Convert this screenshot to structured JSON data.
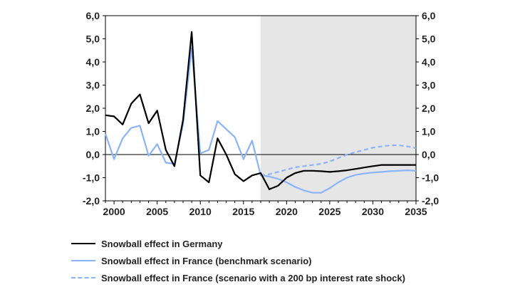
{
  "chart_data": {
    "type": "line",
    "title": "",
    "xlabel": "",
    "ylabel": "",
    "xlim": [
      1999,
      2035
    ],
    "ylim": [
      -2.0,
      6.0
    ],
    "x_ticks": [
      2000,
      2005,
      2010,
      2015,
      2020,
      2025,
      2030,
      2035
    ],
    "y_ticks": [
      "6,0",
      "5,0",
      "4,0",
      "3,0",
      "2,0",
      "1,0",
      "0,0",
      "-1,0",
      "-2,0"
    ],
    "y_tick_values": [
      6,
      5,
      4,
      3,
      2,
      1,
      0,
      -1,
      -2
    ],
    "shaded_region": {
      "from": 2017,
      "to": 2035,
      "color": "#e6e6e6"
    },
    "zero_line": true,
    "series": [
      {
        "name": "Snowball effect in Germany",
        "color": "#000000",
        "style": "solid",
        "x": [
          1999,
          2000,
          2001,
          2002,
          2003,
          2004,
          2005,
          2006,
          2007,
          2008,
          2009,
          2010,
          2011,
          2012,
          2013,
          2014,
          2015,
          2016,
          2017,
          2018,
          2019,
          2020,
          2021,
          2022,
          2023,
          2024,
          2025,
          2026,
          2027,
          2028,
          2029,
          2030,
          2031,
          2032,
          2033,
          2034,
          2035
        ],
        "values": [
          1.7,
          1.65,
          1.3,
          2.2,
          2.6,
          1.35,
          1.9,
          0.2,
          -0.5,
          1.5,
          5.3,
          -0.9,
          -1.2,
          0.7,
          0.0,
          -0.85,
          -1.15,
          -0.9,
          -0.8,
          -1.5,
          -1.35,
          -1.0,
          -0.8,
          -0.7,
          -0.7,
          -0.72,
          -0.75,
          -0.72,
          -0.68,
          -0.62,
          -0.56,
          -0.5,
          -0.45,
          -0.45,
          -0.45,
          -0.45,
          -0.45
        ]
      },
      {
        "name": "Snowball effect in France (benchmark scenario)",
        "color": "#8ab4f8",
        "style": "solid",
        "x": [
          1999,
          2000,
          2001,
          2002,
          2003,
          2004,
          2005,
          2006,
          2007,
          2008,
          2009,
          2010,
          2011,
          2012,
          2013,
          2014,
          2015,
          2016,
          2017,
          2018,
          2019,
          2020,
          2021,
          2022,
          2023,
          2024,
          2025,
          2026,
          2027,
          2028,
          2029,
          2030,
          2031,
          2032,
          2033,
          2034,
          2035
        ],
        "values": [
          0.9,
          -0.2,
          0.7,
          1.15,
          1.25,
          -0.05,
          0.45,
          -0.35,
          -0.4,
          1.3,
          4.6,
          0.05,
          0.2,
          1.45,
          1.1,
          0.75,
          -0.2,
          0.6,
          -0.9,
          -0.95,
          -1.05,
          -1.2,
          -1.4,
          -1.55,
          -1.65,
          -1.65,
          -1.45,
          -1.2,
          -1.0,
          -0.88,
          -0.82,
          -0.78,
          -0.75,
          -0.72,
          -0.7,
          -0.68,
          -0.7
        ]
      },
      {
        "name": "Snowball effect in France (scenario with a 200 bp interest rate shock)",
        "color": "#8ab4f8",
        "style": "dashed",
        "x": [
          2017,
          2018,
          2019,
          2020,
          2021,
          2022,
          2023,
          2024,
          2025,
          2026,
          2027,
          2028,
          2029,
          2030,
          2031,
          2032,
          2033,
          2034,
          2035
        ],
        "values": [
          -0.9,
          -0.85,
          -0.75,
          -0.65,
          -0.55,
          -0.5,
          -0.45,
          -0.4,
          -0.3,
          -0.15,
          0.0,
          0.1,
          0.2,
          0.3,
          0.35,
          0.4,
          0.4,
          0.35,
          0.28
        ]
      }
    ]
  }
}
